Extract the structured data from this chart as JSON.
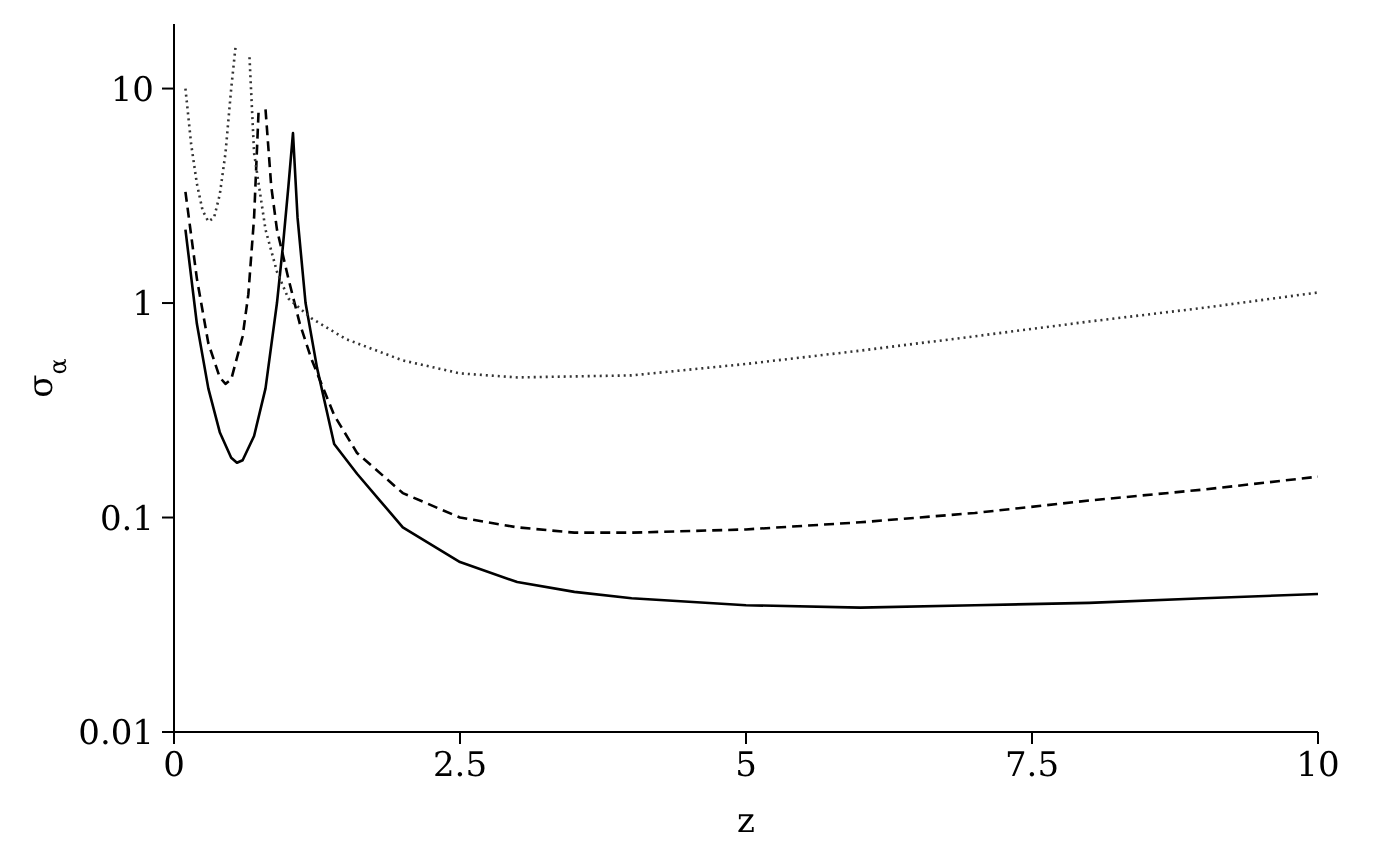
{
  "chart_data": {
    "type": "line",
    "xlabel": "z",
    "ylabel": "σ$_{α}$",
    "log": true,
    "grid": false,
    "marker": "none",
    "xlim": [
      0,
      10
    ],
    "xticks": [
      0,
      2.5,
      5,
      7.5,
      10
    ],
    "ylim": [
      0.01,
      20
    ],
    "yticks": [
      0.01,
      0.1,
      1,
      10
    ],
    "series": [
      {
        "color": "#000000",
        "line_style": "solid",
        "x": [
          0.1,
          0.2,
          0.3,
          0.4,
          0.5,
          0.55,
          0.6,
          0.7,
          0.8,
          0.9,
          0.95,
          1.0,
          1.04,
          1.08,
          1.15,
          1.25,
          1.4,
          1.6,
          1.8,
          2,
          2.5,
          3,
          3.5,
          4,
          5,
          6,
          7,
          8,
          9,
          10
        ],
        "values": [
          2.2,
          0.8,
          0.4,
          0.25,
          0.19,
          0.18,
          0.185,
          0.24,
          0.4,
          1.0,
          1.8,
          3.5,
          6.2,
          2.5,
          1.0,
          0.5,
          0.22,
          0.16,
          0.12,
          0.09,
          0.062,
          0.05,
          0.045,
          0.042,
          0.039,
          0.038,
          0.039,
          0.04,
          0.042,
          0.044
        ]
      },
      {
        "color": "#000000",
        "line_style": "dashed",
        "x": [
          0.1,
          0.2,
          0.3,
          0.4,
          0.45,
          0.5,
          0.6,
          0.65,
          0.7,
          0.74,
          0.76,
          0.78,
          0.8,
          0.85,
          0.9,
          1.0,
          1.1,
          1.2,
          1.4,
          1.6,
          2,
          2.5,
          3,
          3.5,
          4,
          5,
          6,
          7,
          8,
          9,
          10
        ],
        "values": [
          3.3,
          1.3,
          0.65,
          0.45,
          0.42,
          0.44,
          0.7,
          1.1,
          2.5,
          8,
          null,
          null,
          8,
          3.5,
          2.2,
          1.3,
          0.8,
          0.55,
          0.3,
          0.2,
          0.13,
          0.1,
          0.09,
          0.085,
          0.085,
          0.088,
          0.095,
          0.105,
          0.12,
          0.135,
          0.155
        ]
      },
      {
        "color": "#333333",
        "line_style": "dotted",
        "x": [
          0.1,
          0.15,
          0.2,
          0.25,
          0.3,
          0.35,
          0.4,
          0.45,
          0.5,
          0.54,
          0.56,
          0.64,
          0.66,
          0.7,
          0.8,
          0.9,
          1.0,
          1.2,
          1.5,
          2,
          2.5,
          3,
          4,
          5,
          6,
          7,
          8,
          9,
          10
        ],
        "values": [
          10,
          5.5,
          3.6,
          2.7,
          2.4,
          2.5,
          3.2,
          5,
          10,
          16,
          null,
          null,
          14,
          5,
          2.2,
          1.4,
          1.05,
          0.85,
          0.68,
          0.54,
          0.47,
          0.45,
          0.46,
          0.52,
          0.6,
          0.7,
          0.82,
          0.95,
          1.12
        ]
      }
    ]
  }
}
